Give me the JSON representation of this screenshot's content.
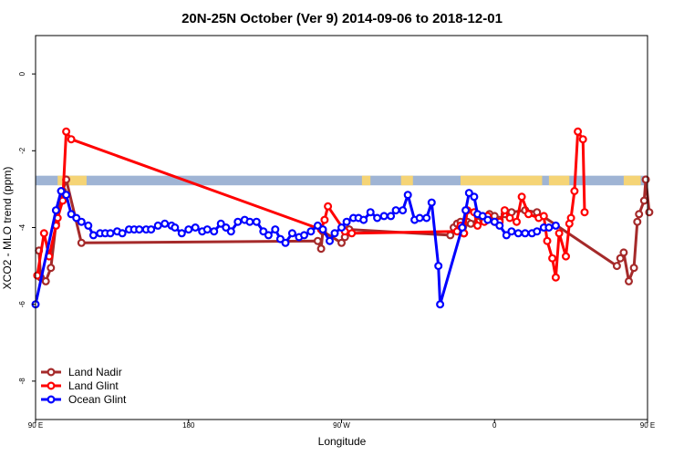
{
  "chart_data": {
    "type": "line",
    "title": "20N-25N October (Ver 9)   2014-09-06 to 2018-12-01",
    "xlabel": "Longitude",
    "ylabel": "XCO2 - MLO trend (ppm)",
    "xlim": [
      90,
      450
    ],
    "ylim": [
      -9,
      1
    ],
    "x_ticks": [
      {
        "value": 90,
        "label": "90 E"
      },
      {
        "value": 180,
        "label": "180"
      },
      {
        "value": 270,
        "label": "90 W"
      },
      {
        "value": 360,
        "label": "0"
      },
      {
        "value": 450,
        "label": "90 E"
      },
      {
        "value": 540,
        "label": "180"
      }
    ],
    "y_ticks": [
      {
        "value": 0,
        "label": "0"
      },
      {
        "value": -2,
        "label": "-2"
      },
      {
        "value": -4,
        "label": "-4"
      },
      {
        "value": -6,
        "label": "-6"
      },
      {
        "value": -8,
        "label": "-8"
      }
    ],
    "grid": false,
    "legend_position": "bottom-left",
    "band": {
      "y_top": -2.65,
      "y_bottom": -2.9,
      "ocean_color": "#9fb4d4",
      "land_color": "#f5d476"
    },
    "series": [
      {
        "name": "Land Nadir",
        "color": "#a52a2a",
        "points": [
          [
            92,
            -4.6
          ],
          [
            93,
            -5.3
          ],
          [
            96,
            -5.4
          ],
          [
            99,
            -5.05
          ],
          [
            102,
            -3.9
          ],
          [
            106,
            -3.05
          ],
          [
            108,
            -2.75
          ],
          [
            117,
            -4.4
          ],
          [
            256,
            -4.35
          ],
          [
            258,
            -4.55
          ],
          [
            259,
            -4.1
          ],
          [
            270,
            -4.4
          ],
          [
            272,
            -4.25
          ],
          [
            274,
            -4.05
          ],
          [
            274.5,
            -4.05
          ],
          [
            334,
            -4.2
          ],
          [
            336,
            -4.0
          ],
          [
            338,
            -3.9
          ],
          [
            340,
            -3.85
          ],
          [
            342,
            -4.15
          ],
          [
            342,
            -4.15
          ],
          [
            344,
            -3.85
          ],
          [
            346,
            -3.9
          ],
          [
            350,
            -3.85
          ],
          [
            353,
            -3.75
          ],
          [
            357,
            -3.65
          ],
          [
            360,
            -3.7
          ],
          [
            363,
            -3.8
          ],
          [
            366,
            -3.65
          ],
          [
            370,
            -3.6
          ],
          [
            378,
            -3.55
          ],
          [
            385,
            -3.6
          ],
          [
            432,
            -5.0
          ],
          [
            434,
            -4.8
          ],
          [
            436,
            -4.65
          ],
          [
            439,
            -5.4
          ],
          [
            442,
            -5.05
          ],
          [
            444,
            -3.85
          ],
          [
            445,
            -3.65
          ],
          [
            448,
            -3.3
          ],
          [
            449,
            -2.75
          ],
          [
            451,
            -3.6
          ]
        ]
      },
      {
        "name": "Land Glint",
        "color": "#ff0000",
        "points": [
          [
            91,
            -5.25
          ],
          [
            95,
            -4.15
          ],
          [
            98,
            -4.75
          ],
          [
            102,
            -3.95
          ],
          [
            103,
            -3.75
          ],
          [
            106,
            -3.3
          ],
          [
            108,
            -1.5
          ],
          [
            111,
            -1.7
          ],
          [
            258,
            -4.05
          ],
          [
            260,
            -3.8
          ],
          [
            262,
            -3.45
          ],
          [
            272,
            -4.1
          ],
          [
            276,
            -4.15
          ],
          [
            338,
            -4.1
          ],
          [
            340,
            -3.95
          ],
          [
            342,
            -4.15
          ],
          [
            344,
            -3.55
          ],
          [
            348,
            -3.6
          ],
          [
            350,
            -3.95
          ],
          [
            354,
            -3.85
          ],
          [
            356,
            -3.7
          ],
          [
            360,
            -3.85
          ],
          [
            363,
            -3.85
          ],
          [
            366,
            -3.55
          ],
          [
            369,
            -3.75
          ],
          [
            373,
            -3.85
          ],
          [
            376,
            -3.2
          ],
          [
            380,
            -3.65
          ],
          [
            386,
            -3.75
          ],
          [
            389,
            -3.7
          ],
          [
            391,
            -4.35
          ],
          [
            394,
            -4.8
          ],
          [
            396,
            -5.3
          ],
          [
            398,
            -4.15
          ],
          [
            402,
            -4.75
          ],
          [
            404,
            -3.9
          ],
          [
            405,
            -3.75
          ],
          [
            407,
            -3.05
          ],
          [
            409,
            -1.5
          ],
          [
            412,
            -1.7
          ],
          [
            413,
            -3.6
          ]
        ]
      },
      {
        "name": "Ocean Glint",
        "color": "#0000ff",
        "points": [
          [
            90,
            -6.0
          ],
          [
            102,
            -3.55
          ],
          [
            105,
            -3.05
          ],
          [
            108,
            -3.15
          ],
          [
            111,
            -3.65
          ],
          [
            114,
            -3.75
          ],
          [
            117,
            -3.85
          ],
          [
            121,
            -3.95
          ],
          [
            124,
            -4.2
          ],
          [
            128,
            -4.15
          ],
          [
            131,
            -4.15
          ],
          [
            134,
            -4.15
          ],
          [
            138,
            -4.1
          ],
          [
            141,
            -4.15
          ],
          [
            145,
            -4.05
          ],
          [
            148,
            -4.05
          ],
          [
            151,
            -4.05
          ],
          [
            155,
            -4.05
          ],
          [
            158,
            -4.05
          ],
          [
            162,
            -3.95
          ],
          [
            166,
            -3.9
          ],
          [
            170,
            -3.95
          ],
          [
            172,
            -4.0
          ],
          [
            176,
            -4.15
          ],
          [
            180,
            -4.05
          ],
          [
            184,
            -4.0
          ],
          [
            188,
            -4.1
          ],
          [
            191,
            -4.05
          ],
          [
            195,
            -4.1
          ],
          [
            199,
            -3.9
          ],
          [
            202,
            -4.0
          ],
          [
            205,
            -4.1
          ],
          [
            209,
            -3.85
          ],
          [
            213,
            -3.8
          ],
          [
            216,
            -3.85
          ],
          [
            220,
            -3.85
          ],
          [
            224,
            -4.1
          ],
          [
            227,
            -4.2
          ],
          [
            231,
            -4.05
          ],
          [
            234,
            -4.3
          ],
          [
            237,
            -4.4
          ],
          [
            241,
            -4.15
          ],
          [
            245,
            -4.25
          ],
          [
            248,
            -4.2
          ],
          [
            252,
            -4.1
          ],
          [
            256,
            -3.95
          ],
          [
            259,
            -4.05
          ],
          [
            263,
            -4.35
          ],
          [
            266,
            -4.15
          ],
          [
            270,
            -4.0
          ],
          [
            273,
            -3.85
          ],
          [
            277,
            -3.75
          ],
          [
            280,
            -3.75
          ],
          [
            283,
            -3.8
          ],
          [
            287,
            -3.6
          ],
          [
            291,
            -3.75
          ],
          [
            295,
            -3.7
          ],
          [
            299,
            -3.7
          ],
          [
            302,
            -3.55
          ],
          [
            306,
            -3.55
          ],
          [
            309,
            -3.15
          ],
          [
            313,
            -3.8
          ],
          [
            316,
            -3.75
          ],
          [
            320,
            -3.75
          ],
          [
            323,
            -3.35
          ],
          [
            327,
            -5.0
          ],
          [
            328,
            -6.0
          ],
          [
            341,
            -4.0
          ],
          [
            343,
            -3.55
          ],
          [
            345,
            -3.1
          ],
          [
            348,
            -3.2
          ],
          [
            350,
            -3.65
          ],
          [
            353,
            -3.7
          ],
          [
            356,
            -3.8
          ],
          [
            360,
            -3.85
          ],
          [
            363,
            -3.95
          ],
          [
            367,
            -4.2
          ],
          [
            370,
            -4.1
          ],
          [
            374,
            -4.15
          ],
          [
            378,
            -4.15
          ],
          [
            382,
            -4.15
          ],
          [
            385,
            -4.1
          ],
          [
            389,
            -4.0
          ],
          [
            392,
            -4.0
          ],
          [
            396,
            -3.95
          ]
        ]
      }
    ]
  }
}
